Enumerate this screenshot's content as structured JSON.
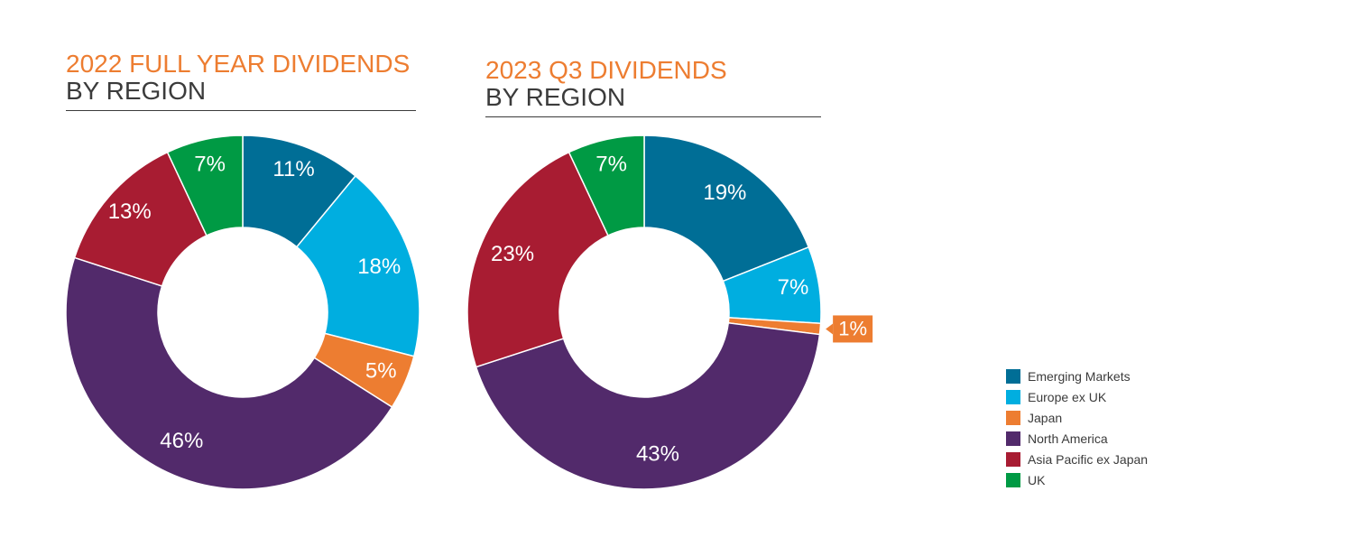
{
  "chart_data": [
    {
      "type": "pie",
      "variant": "donut",
      "title": "2022 FULL YEAR DIVIDENDS",
      "subtitle": "BY REGION",
      "slices": [
        {
          "name": "Emerging Markets",
          "value": 11,
          "label": "11%",
          "color": "#006E96"
        },
        {
          "name": "Europe ex UK",
          "value": 18,
          "label": "18%",
          "color": "#00AEE0"
        },
        {
          "name": "Japan",
          "value": 5,
          "label": "5%",
          "color": "#ED7D31"
        },
        {
          "name": "North America",
          "value": 46,
          "label": "46%",
          "color": "#522A6B"
        },
        {
          "name": "Asia Pacific ex Japan",
          "value": 13,
          "label": "13%",
          "color": "#A81C32"
        },
        {
          "name": "UK",
          "value": 7,
          "label": "7%",
          "color": "#009A44"
        }
      ]
    },
    {
      "type": "pie",
      "variant": "donut",
      "title": "2023 Q3 DIVIDENDS",
      "subtitle": "BY REGION",
      "slices": [
        {
          "name": "Emerging Markets",
          "value": 19,
          "label": "19%",
          "color": "#006E96"
        },
        {
          "name": "Europe ex UK",
          "value": 7,
          "label": "7%",
          "color": "#00AEE0"
        },
        {
          "name": "Japan",
          "value": 1,
          "label": "1%",
          "color": "#ED7D31",
          "callout": true
        },
        {
          "name": "North America",
          "value": 43,
          "label": "43%",
          "color": "#522A6B"
        },
        {
          "name": "Asia Pacific ex Japan",
          "value": 23,
          "label": "23%",
          "color": "#A81C32"
        },
        {
          "name": "UK",
          "value": 7,
          "label": "7%",
          "color": "#009A44"
        }
      ]
    }
  ],
  "legend": {
    "placement": "bottom-right",
    "items": [
      {
        "label": "Emerging Markets",
        "color": "#006E96"
      },
      {
        "label": "Europe ex UK",
        "color": "#00AEE0"
      },
      {
        "label": "Japan",
        "color": "#ED7D31"
      },
      {
        "label": "North America",
        "color": "#522A6B"
      },
      {
        "label": "Asia Pacific ex Japan",
        "color": "#A81C32"
      },
      {
        "label": "UK",
        "color": "#009A44"
      }
    ]
  }
}
